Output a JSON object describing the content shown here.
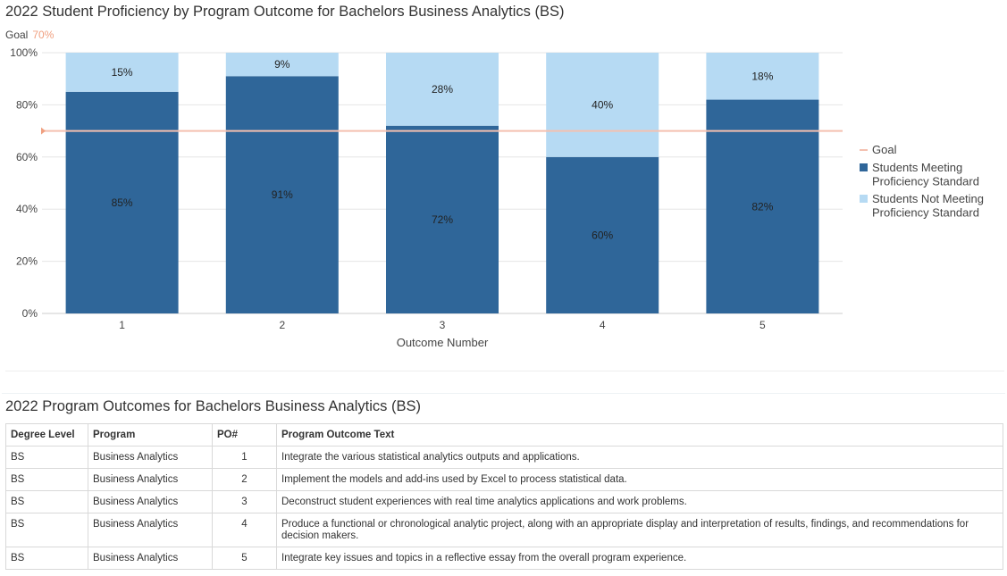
{
  "chart": {
    "title": "2022 Student Proficiency by Program Outcome for Bachelors Business Analytics (BS)",
    "goal_caption": "Goal",
    "goal_value": "70%"
  },
  "chart_data": {
    "type": "bar",
    "stacked": true,
    "title": "2022 Student Proficiency by Program Outcome for Bachelors Business Analytics (BS)",
    "xlabel": "Outcome Number",
    "ylabel": "",
    "categories": [
      "1",
      "2",
      "3",
      "4",
      "5"
    ],
    "y_ticks": [
      "0%",
      "20%",
      "40%",
      "60%",
      "80%",
      "100%"
    ],
    "ylim": [
      0,
      100
    ],
    "grid": true,
    "goal": {
      "name": "Goal",
      "value": 70,
      "color": "#f4c0b0"
    },
    "series": [
      {
        "name": "Students Meeting Proficiency Standard",
        "values": [
          85,
          91,
          72,
          60,
          82
        ],
        "labels": [
          "85%",
          "91%",
          "72%",
          "60%",
          "82%"
        ],
        "color": "#2f6699"
      },
      {
        "name": "Students Not Meeting Proficiency Standard",
        "values": [
          15,
          9,
          28,
          40,
          18
        ],
        "labels": [
          "15%",
          "9%",
          "28%",
          "40%",
          "18%"
        ],
        "color": "#b6daf3"
      }
    ],
    "legend": {
      "position": "right",
      "entries": [
        {
          "lines": [
            "Goal"
          ],
          "color": "#f4c0b0",
          "marker": "line"
        },
        {
          "lines": [
            "Students Meeting",
            "Proficiency Standard"
          ],
          "color": "#2f6699",
          "marker": "square"
        },
        {
          "lines": [
            "Students Not Meeting",
            "Proficiency Standard"
          ],
          "color": "#b6daf3",
          "marker": "square"
        }
      ]
    }
  },
  "table": {
    "title": "2022 Program Outcomes for Bachelors Business Analytics (BS)",
    "headers": [
      "Degree Level",
      "Program",
      "PO#",
      "Program Outcome Text"
    ],
    "rows": [
      [
        "BS",
        "Business Analytics",
        "1",
        "Integrate the various statistical analytics outputs and applications."
      ],
      [
        "BS",
        "Business Analytics",
        "2",
        "Implement the models and add-ins used by Excel to process statistical data."
      ],
      [
        "BS",
        "Business Analytics",
        "3",
        "Deconstruct student experiences with real time analytics applications and work problems."
      ],
      [
        "BS",
        "Business Analytics",
        "4",
        "Produce a functional or chronological analytic project, along with an appropriate display and interpretation of results, findings, and recommendations for decision makers."
      ],
      [
        "BS",
        "Business Analytics",
        "5",
        "Integrate key issues and topics in a reflective essay from the overall program experience."
      ]
    ]
  }
}
